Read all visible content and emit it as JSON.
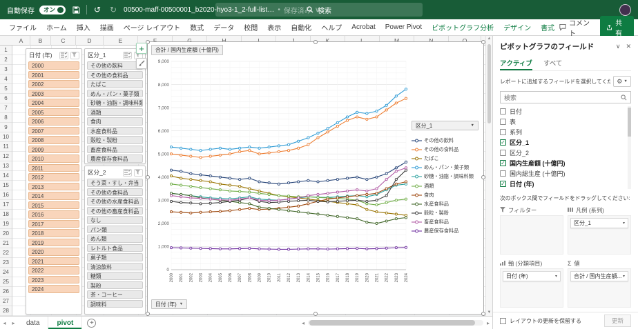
{
  "colors": {
    "titlebar_green": "#185C37",
    "accent_green": "#107C41",
    "slicer_date_fill": "#F9D5BB",
    "slicer_cat_fill": "#E9E9E9"
  },
  "titlebar": {
    "autosave_label": "自動保存",
    "autosave_state": "オン",
    "filename": "00500-maff-00500001_b2020-hyo3-1_2-full-list…",
    "saved_status": "保存済み",
    "search_placeholder": "検索"
  },
  "ribbon": {
    "tabs": [
      {
        "label": "ファイル",
        "contextual": false
      },
      {
        "label": "ホーム",
        "contextual": false
      },
      {
        "label": "挿入",
        "contextual": false
      },
      {
        "label": "描画",
        "contextual": false
      },
      {
        "label": "ページ レイアウト",
        "contextual": false
      },
      {
        "label": "数式",
        "contextual": false
      },
      {
        "label": "データ",
        "contextual": false
      },
      {
        "label": "校閲",
        "contextual": false
      },
      {
        "label": "表示",
        "contextual": false
      },
      {
        "label": "自動化",
        "contextual": false
      },
      {
        "label": "ヘルプ",
        "contextual": false
      },
      {
        "label": "Acrobat",
        "contextual": false
      },
      {
        "label": "Power Pivot",
        "contextual": false
      },
      {
        "label": "ピボットグラフ分析",
        "contextual": true
      },
      {
        "label": "デザイン",
        "contextual": true
      },
      {
        "label": "書式",
        "contextual": true
      }
    ],
    "comments_label": "コメント",
    "share_label": "共有"
  },
  "grid": {
    "columns": [
      "A",
      "B",
      "C",
      "D",
      "E",
      "F",
      "G",
      "H",
      "I",
      "J",
      "K",
      "L",
      "M",
      "N",
      "O"
    ],
    "row_count": 28
  },
  "slicers": {
    "date": {
      "title": "日付 (年)",
      "items": [
        "2000",
        "2001",
        "2002",
        "2003",
        "2004",
        "2005",
        "2006",
        "2007",
        "2008",
        "2009",
        "2010",
        "2011",
        "2012",
        "2013",
        "2014",
        "2015",
        "2016",
        "2017",
        "2018",
        "2019",
        "2020",
        "2021",
        "2022",
        "2023",
        "2024"
      ]
    },
    "cat1": {
      "title": "区分_1",
      "items": [
        "その他の飲料",
        "その他の食料品",
        "たばこ",
        "めん・パン・菓子類",
        "砂糖・油脂・調味料類",
        "酒類",
        "食肉",
        "水産食料品",
        "穀粒・製粉",
        "畜産食料品",
        "農産保存食料品"
      ]
    },
    "cat2": {
      "title": "区分_2",
      "items": [
        "そう菜・すし・弁当",
        "その他の食料品",
        "その他の水産食料品",
        "その他の畜産食料品",
        "なし",
        "パン類",
        "めん類",
        "レトルト食品",
        "菓子類",
        "清涼飲料",
        "糖類",
        "製粉",
        "茶・コーヒー",
        "調味料"
      ]
    }
  },
  "chart": {
    "value_button": "合計 / 国内生産額 (十億円)",
    "legend_button": "区分_1",
    "axis_button": "日付 (年)"
  },
  "chart_data": {
    "type": "line",
    "title": "合計 / 国内生産額 (十億円)",
    "xlabel": "日付 (年)",
    "ylabel": "",
    "ylim": [
      0,
      9000
    ],
    "ytick_step": 1000,
    "grid": true,
    "legend_position": "right",
    "legend_title": "区分_1",
    "x": [
      2000,
      2001,
      2002,
      2003,
      2004,
      2005,
      2006,
      2007,
      2008,
      2009,
      2010,
      2011,
      2012,
      2013,
      2014,
      2015,
      2016,
      2017,
      2018,
      2019,
      2020,
      2021,
      2022,
      2023,
      2024
    ],
    "series": [
      {
        "name": "その他の飲料",
        "color": "#264478",
        "values": [
          4300,
          4250,
          4150,
          4100,
          4050,
          4000,
          3950,
          3900,
          3950,
          3800,
          3750,
          3700,
          3750,
          3800,
          3850,
          3800,
          3850,
          3900,
          3950,
          4000,
          3900,
          4000,
          4150,
          4400,
          4650
        ]
      },
      {
        "name": "その他の食料品",
        "color": "#ED7D31",
        "values": [
          5000,
          4950,
          4900,
          4850,
          4900,
          4950,
          5000,
          5100,
          5150,
          5000,
          5050,
          5100,
          5150,
          5250,
          5400,
          5700,
          5950,
          6200,
          6450,
          6600,
          6500,
          6600,
          6900,
          7200,
          7400
        ]
      },
      {
        "name": "たばこ",
        "color": "#997300",
        "values": [
          4050,
          3950,
          3900,
          3850,
          3800,
          3700,
          3650,
          3600,
          3500,
          3400,
          3300,
          3200,
          3150,
          3100,
          3050,
          3000,
          2950,
          2900,
          2850,
          2800,
          2600,
          2500,
          2450,
          2400,
          2350
        ]
      },
      {
        "name": "めん・パン・菓子類",
        "color": "#2E9BD5",
        "values": [
          5300,
          5250,
          5200,
          5150,
          5200,
          5250,
          5200,
          5250,
          5300,
          5250,
          5300,
          5350,
          5400,
          5550,
          5700,
          5900,
          6100,
          6350,
          6600,
          6800,
          6750,
          6850,
          7100,
          7500,
          7800
        ]
      },
      {
        "name": "砂糖・油脂・調味料類",
        "color": "#2FA3A0",
        "values": [
          3300,
          3250,
          3200,
          3150,
          3100,
          3080,
          3060,
          3100,
          3150,
          3050,
          3020,
          3000,
          3050,
          3100,
          3150,
          3130,
          3120,
          3150,
          3180,
          3200,
          3150,
          3250,
          3450,
          3650,
          3700
        ]
      },
      {
        "name": "酒類",
        "color": "#70AD47",
        "values": [
          3700,
          3650,
          3600,
          3550,
          3500,
          3450,
          3400,
          3380,
          3350,
          3300,
          3250,
          3200,
          3180,
          3150,
          3150,
          3120,
          3100,
          3080,
          3050,
          3000,
          2850,
          2800,
          2900,
          3000,
          3050
        ]
      },
      {
        "name": "食肉",
        "color": "#9E480E",
        "values": [
          2500,
          2480,
          2450,
          2480,
          2500,
          2520,
          2550,
          2600,
          2650,
          2600,
          2620,
          2650,
          2700,
          2750,
          2850,
          2950,
          3050,
          3100,
          3150,
          3200,
          3250,
          3300,
          3500,
          3700,
          3800
        ]
      },
      {
        "name": "水産食料品",
        "color": "#43682B",
        "values": [
          3300,
          3250,
          3200,
          3100,
          3050,
          3000,
          2950,
          2900,
          2850,
          2700,
          2650,
          2600,
          2550,
          2500,
          2450,
          2400,
          2350,
          2300,
          2250,
          2200,
          2050,
          2000,
          2100,
          2200,
          2250
        ]
      },
      {
        "name": "穀粒・製粉",
        "color": "#3B3B3B",
        "values": [
          2950,
          2900,
          2880,
          2850,
          2870,
          2900,
          2950,
          3000,
          3100,
          2950,
          2900,
          2920,
          2950,
          2980,
          3000,
          2950,
          2930,
          2950,
          2980,
          3000,
          2950,
          3000,
          3200,
          3900,
          4300
        ]
      },
      {
        "name": "畜産食料品",
        "color": "#B15AA4",
        "values": [
          3200,
          3150,
          3100,
          3080,
          3050,
          3020,
          3000,
          3050,
          3100,
          3000,
          2980,
          3000,
          3050,
          3100,
          3200,
          3250,
          3300,
          3350,
          3400,
          3450,
          3400,
          3500,
          3900,
          4250,
          4400
        ]
      },
      {
        "name": "農産保存食料品",
        "color": "#7030A0",
        "values": [
          950,
          940,
          930,
          920,
          910,
          900,
          900,
          910,
          920,
          900,
          890,
          880,
          880,
          890,
          900,
          900,
          890,
          900,
          910,
          920,
          900,
          910,
          930,
          950,
          960
        ]
      }
    ]
  },
  "panel": {
    "title": "ピボットグラフのフィールド",
    "tabs": [
      "アクティブ",
      "すべて"
    ],
    "active_tab": "アクティブ",
    "choose_text": "レポートに追加するフィールドを選択してください:",
    "search_placeholder": "検索",
    "fields": [
      {
        "label": "日付",
        "checked": false
      },
      {
        "label": "表",
        "checked": false
      },
      {
        "label": "系列",
        "checked": false
      },
      {
        "label": "区分_1",
        "checked": true
      },
      {
        "label": "区分_2",
        "checked": false
      },
      {
        "label": "国内生産額 (十億円)",
        "checked": true
      },
      {
        "label": "国内総生産 (十億円)",
        "checked": false
      },
      {
        "label": "日付 (年)",
        "checked": true
      }
    ],
    "drag_text": "次のボックス間でフィールドをドラッグしてください:",
    "zones": [
      {
        "label": "フィルター",
        "icon": "filter",
        "items": []
      },
      {
        "label": "凡例 (系列)",
        "icon": "legend",
        "items": [
          "区分_1"
        ]
      },
      {
        "label": "軸 (分類項目)",
        "icon": "axis",
        "items": [
          "日付 (年)"
        ]
      },
      {
        "label": "値",
        "icon": "sigma",
        "items": [
          "合計 / 国内生産額..."
        ]
      }
    ],
    "defer_label": "レイアウトの更新を保留する",
    "update_label": "更新"
  },
  "sheetbar": {
    "tabs": [
      "data",
      "pivot"
    ],
    "active": "pivot",
    "add_label": "+"
  }
}
